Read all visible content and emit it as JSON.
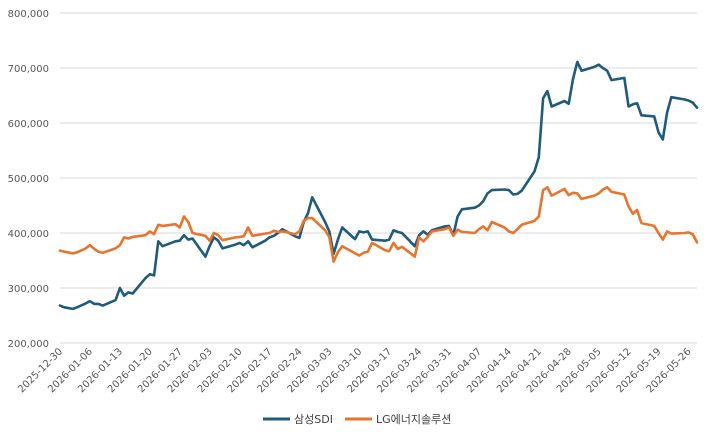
{
  "chart_data": {
    "type": "line",
    "title": "",
    "xlabel": "",
    "ylabel": "",
    "ylim": [
      200000,
      800000
    ],
    "yticks": [
      "200,000",
      "300,000",
      "400,000",
      "500,000",
      "600,000",
      "700,000",
      "800,000"
    ],
    "xticks": [
      "2025-12-30",
      "2026-01-06",
      "2026-01-13",
      "2026-01-20",
      "2026-01-27",
      "2026-02-03",
      "2026-02-10",
      "2026-02-17",
      "2026-02-24",
      "2026-03-03",
      "2026-03-10",
      "2026-03-17",
      "2026-03-24",
      "2026-03-31",
      "2026-04-07",
      "2026-04-14",
      "2026-04-21",
      "2026-04-28",
      "2026-05-05",
      "2026-05-12",
      "2026-05-19",
      "2026-05-26"
    ],
    "xrange": [
      "2025-12-30",
      "2026-05-28"
    ],
    "grid": "horizontal",
    "legend_position": "bottom",
    "series": [
      {
        "name": "삼성SDI",
        "color": "#1f5b7a",
        "points": [
          [
            "2025-12-30",
            268000
          ],
          [
            "2025-12-31",
            265000
          ],
          [
            "2026-01-02",
            262000
          ],
          [
            "2026-01-03",
            265000
          ],
          [
            "2026-01-05",
            272000
          ],
          [
            "2026-01-06",
            276000
          ],
          [
            "2026-01-07",
            271000
          ],
          [
            "2026-01-08",
            271000
          ],
          [
            "2026-01-09",
            268000
          ],
          [
            "2026-01-12",
            278000
          ],
          [
            "2026-01-13",
            300000
          ],
          [
            "2026-01-14",
            286000
          ],
          [
            "2026-01-15",
            292000
          ],
          [
            "2026-01-16",
            290000
          ],
          [
            "2026-01-19",
            318000
          ],
          [
            "2026-01-20",
            325000
          ],
          [
            "2026-01-21",
            323000
          ],
          [
            "2026-01-22",
            385000
          ],
          [
            "2026-01-23",
            376000
          ],
          [
            "2026-01-26",
            385000
          ],
          [
            "2026-01-27",
            386000
          ],
          [
            "2026-01-28",
            396000
          ],
          [
            "2026-01-29",
            388000
          ],
          [
            "2026-01-30",
            390000
          ],
          [
            "2026-02-02",
            357000
          ],
          [
            "2026-02-03",
            376000
          ],
          [
            "2026-02-04",
            392000
          ],
          [
            "2026-02-05",
            386000
          ],
          [
            "2026-02-06",
            372000
          ],
          [
            "2026-02-09",
            379000
          ],
          [
            "2026-02-10",
            382000
          ],
          [
            "2026-02-11",
            378000
          ],
          [
            "2026-02-12",
            385000
          ],
          [
            "2026-02-13",
            374000
          ],
          [
            "2026-02-16",
            386000
          ],
          [
            "2026-02-17",
            392000
          ],
          [
            "2026-02-18",
            395000
          ],
          [
            "2026-02-19",
            400000
          ],
          [
            "2026-02-20",
            407000
          ],
          [
            "2026-02-23",
            394000
          ],
          [
            "2026-02-24",
            391000
          ],
          [
            "2026-02-25",
            420000
          ],
          [
            "2026-02-26",
            436000
          ],
          [
            "2026-02-27",
            465000
          ],
          [
            "2026-03-02",
            420000
          ],
          [
            "2026-03-03",
            403000
          ],
          [
            "2026-03-04",
            362000
          ],
          [
            "2026-03-05",
            388000
          ],
          [
            "2026-03-06",
            410000
          ],
          [
            "2026-03-09",
            389000
          ],
          [
            "2026-03-10",
            403000
          ],
          [
            "2026-03-11",
            401000
          ],
          [
            "2026-03-12",
            403000
          ],
          [
            "2026-03-13",
            388000
          ],
          [
            "2026-03-16",
            386000
          ],
          [
            "2026-03-17",
            388000
          ],
          [
            "2026-03-18",
            405000
          ],
          [
            "2026-03-19",
            402000
          ],
          [
            "2026-03-20",
            400000
          ],
          [
            "2026-03-23",
            376000
          ],
          [
            "2026-03-24",
            396000
          ],
          [
            "2026-03-25",
            403000
          ],
          [
            "2026-03-26",
            397000
          ],
          [
            "2026-03-27",
            405000
          ],
          [
            "2026-03-30",
            412000
          ],
          [
            "2026-03-31",
            413000
          ],
          [
            "2026-04-01",
            396000
          ],
          [
            "2026-04-02",
            430000
          ],
          [
            "2026-04-03",
            443000
          ],
          [
            "2026-04-06",
            446000
          ],
          [
            "2026-04-07",
            450000
          ],
          [
            "2026-04-08",
            458000
          ],
          [
            "2026-04-09",
            472000
          ],
          [
            "2026-04-10",
            478000
          ],
          [
            "2026-04-13",
            479000
          ],
          [
            "2026-04-14",
            478000
          ],
          [
            "2026-04-15",
            470000
          ],
          [
            "2026-04-16",
            471000
          ],
          [
            "2026-04-17",
            477000
          ],
          [
            "2026-04-20",
            512000
          ],
          [
            "2026-04-21",
            538000
          ],
          [
            "2026-04-22",
            645000
          ],
          [
            "2026-04-23",
            658000
          ],
          [
            "2026-04-24",
            630000
          ],
          [
            "2026-04-27",
            640000
          ],
          [
            "2026-04-28",
            635000
          ],
          [
            "2026-04-29",
            680000
          ],
          [
            "2026-04-30",
            711000
          ],
          [
            "2026-05-01",
            695000
          ],
          [
            "2026-05-04",
            702000
          ],
          [
            "2026-05-05",
            706000
          ],
          [
            "2026-05-06",
            700000
          ],
          [
            "2026-05-07",
            695000
          ],
          [
            "2026-05-08",
            678000
          ],
          [
            "2026-05-11",
            682000
          ],
          [
            "2026-05-12",
            630000
          ],
          [
            "2026-05-13",
            634000
          ],
          [
            "2026-05-14",
            636000
          ],
          [
            "2026-05-15",
            614000
          ],
          [
            "2026-05-18",
            612000
          ],
          [
            "2026-05-19",
            583000
          ],
          [
            "2026-05-20",
            570000
          ],
          [
            "2026-05-21",
            619000
          ],
          [
            "2026-05-22",
            647000
          ],
          [
            "2026-05-25",
            643000
          ],
          [
            "2026-05-26",
            641000
          ],
          [
            "2026-05-27",
            637000
          ],
          [
            "2026-05-28",
            628000
          ]
        ]
      },
      {
        "name": "LG에너지솔루션",
        "color": "#e8742d",
        "points": [
          [
            "2025-12-30",
            368000
          ],
          [
            "2025-12-31",
            366000
          ],
          [
            "2026-01-02",
            363000
          ],
          [
            "2026-01-03",
            365000
          ],
          [
            "2026-01-05",
            372000
          ],
          [
            "2026-01-06",
            378000
          ],
          [
            "2026-01-07",
            371000
          ],
          [
            "2026-01-08",
            366000
          ],
          [
            "2026-01-09",
            364000
          ],
          [
            "2026-01-12",
            372000
          ],
          [
            "2026-01-13",
            378000
          ],
          [
            "2026-01-14",
            392000
          ],
          [
            "2026-01-15",
            390000
          ],
          [
            "2026-01-16",
            393000
          ],
          [
            "2026-01-19",
            396000
          ],
          [
            "2026-01-20",
            403000
          ],
          [
            "2026-01-21",
            398000
          ],
          [
            "2026-01-22",
            415000
          ],
          [
            "2026-01-23",
            413000
          ],
          [
            "2026-01-26",
            416000
          ],
          [
            "2026-01-27",
            410000
          ],
          [
            "2026-01-28",
            430000
          ],
          [
            "2026-01-29",
            420000
          ],
          [
            "2026-01-30",
            400000
          ],
          [
            "2026-02-02",
            395000
          ],
          [
            "2026-02-03",
            386000
          ],
          [
            "2026-02-04",
            400000
          ],
          [
            "2026-02-05",
            396000
          ],
          [
            "2026-02-06",
            387000
          ],
          [
            "2026-02-09",
            392000
          ],
          [
            "2026-02-10",
            393000
          ],
          [
            "2026-02-11",
            394000
          ],
          [
            "2026-02-12",
            410000
          ],
          [
            "2026-02-13",
            395000
          ],
          [
            "2026-02-16",
            399000
          ],
          [
            "2026-02-17",
            400000
          ],
          [
            "2026-02-18",
            404000
          ],
          [
            "2026-02-19",
            402000
          ],
          [
            "2026-02-20",
            403000
          ],
          [
            "2026-02-23",
            398000
          ],
          [
            "2026-02-24",
            403000
          ],
          [
            "2026-02-25",
            422000
          ],
          [
            "2026-02-26",
            427000
          ],
          [
            "2026-02-27",
            427000
          ],
          [
            "2026-03-02",
            405000
          ],
          [
            "2026-03-03",
            393000
          ],
          [
            "2026-03-04",
            348000
          ],
          [
            "2026-03-05",
            365000
          ],
          [
            "2026-03-06",
            376000
          ],
          [
            "2026-03-09",
            363000
          ],
          [
            "2026-03-10",
            359000
          ],
          [
            "2026-03-11",
            364000
          ],
          [
            "2026-03-12",
            366000
          ],
          [
            "2026-03-13",
            382000
          ],
          [
            "2026-03-16",
            369000
          ],
          [
            "2026-03-17",
            367000
          ],
          [
            "2026-03-18",
            382000
          ],
          [
            "2026-03-19",
            371000
          ],
          [
            "2026-03-20",
            375000
          ],
          [
            "2026-03-23",
            357000
          ],
          [
            "2026-03-24",
            392000
          ],
          [
            "2026-03-25",
            385000
          ],
          [
            "2026-03-26",
            393000
          ],
          [
            "2026-03-27",
            403000
          ],
          [
            "2026-03-30",
            407000
          ],
          [
            "2026-03-31",
            410000
          ],
          [
            "2026-04-01",
            395000
          ],
          [
            "2026-04-02",
            406000
          ],
          [
            "2026-04-03",
            402000
          ],
          [
            "2026-04-06",
            400000
          ],
          [
            "2026-04-07",
            407000
          ],
          [
            "2026-04-08",
            412000
          ],
          [
            "2026-04-09",
            405000
          ],
          [
            "2026-04-10",
            420000
          ],
          [
            "2026-04-13",
            410000
          ],
          [
            "2026-04-14",
            403000
          ],
          [
            "2026-04-15",
            400000
          ],
          [
            "2026-04-16",
            407000
          ],
          [
            "2026-04-17",
            415000
          ],
          [
            "2026-04-20",
            422000
          ],
          [
            "2026-04-21",
            430000
          ],
          [
            "2026-04-22",
            478000
          ],
          [
            "2026-04-23",
            483000
          ],
          [
            "2026-04-24",
            468000
          ],
          [
            "2026-04-27",
            480000
          ],
          [
            "2026-04-28",
            469000
          ],
          [
            "2026-04-29",
            473000
          ],
          [
            "2026-04-30",
            472000
          ],
          [
            "2026-05-01",
            462000
          ],
          [
            "2026-05-04",
            468000
          ],
          [
            "2026-05-05",
            472000
          ],
          [
            "2026-05-06",
            479000
          ],
          [
            "2026-05-07",
            483000
          ],
          [
            "2026-05-08",
            475000
          ],
          [
            "2026-05-11",
            470000
          ],
          [
            "2026-05-12",
            448000
          ],
          [
            "2026-05-13",
            435000
          ],
          [
            "2026-05-14",
            442000
          ],
          [
            "2026-05-15",
            418000
          ],
          [
            "2026-05-18",
            413000
          ],
          [
            "2026-05-19",
            400000
          ],
          [
            "2026-05-20",
            388000
          ],
          [
            "2026-05-21",
            403000
          ],
          [
            "2026-05-22",
            399000
          ],
          [
            "2026-05-25",
            400000
          ],
          [
            "2026-05-26",
            401000
          ],
          [
            "2026-05-27",
            398000
          ],
          [
            "2026-05-28",
            383000
          ]
        ]
      }
    ]
  }
}
